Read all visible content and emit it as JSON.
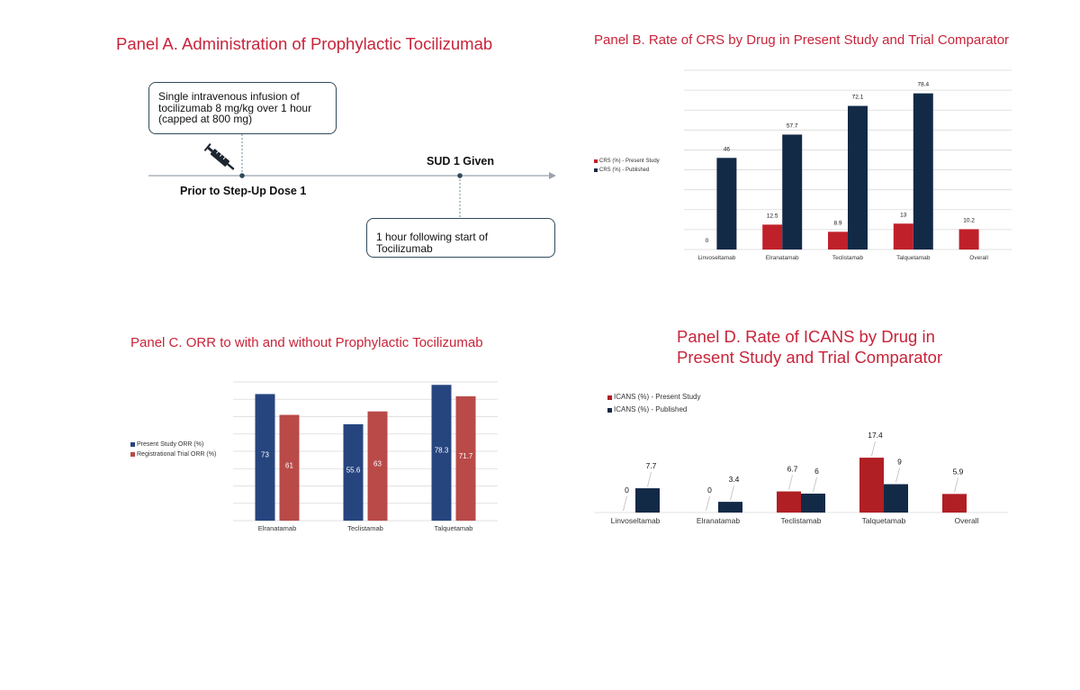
{
  "panel_a": {
    "title": "Panel A. Administration of Prophylactic Tocilizumab",
    "box1_text": "Single intravenous infusion of tocilizumab 8 mg/kg over 1 hour (capped at 800 mg)",
    "prior_label": "Prior to Step-Up Dose 1",
    "sud_label": "SUD 1 Given",
    "box2_text": "1 hour following start of Tocilizumab",
    "icon": "syringe-icon",
    "timeline_color": "#9aa3ad",
    "marker_color": "#2f4a5a"
  },
  "chart_data": [
    {
      "panel": "B",
      "type": "bar",
      "title": "Panel B. Rate of CRS by Drug in Present Study and Trial Comparator",
      "categories": [
        "Linvoseltamab",
        "Elranatamab",
        "Teclistamab",
        "Talquetamab",
        "Overall"
      ],
      "series": [
        {
          "name": "CRS (%) - Present Study",
          "color": "#c0202a",
          "values": [
            0,
            12.5,
            8.9,
            13,
            10.2
          ]
        },
        {
          "name": "CRS (%) - Published",
          "color": "#132a47",
          "values": [
            46,
            57.7,
            72.1,
            78.4,
            null
          ]
        }
      ],
      "ylim": [
        0,
        90
      ],
      "grid": true,
      "legend": "left"
    },
    {
      "panel": "C",
      "type": "bar",
      "title": "Panel C. ORR to with and without Prophylactic Tocilizumab",
      "categories": [
        "Elranatamab",
        "Teclistamab",
        "Talquetamab"
      ],
      "series": [
        {
          "name": "Present Study ORR (%)",
          "color": "#26457f",
          "values": [
            73,
            55.6,
            78.3
          ]
        },
        {
          "name": "Registrational Trial ORR (%)",
          "color": "#b94a48",
          "values": [
            61,
            63,
            71.7
          ]
        }
      ],
      "ylim": [
        0,
        80
      ],
      "grid": true,
      "legend": "left"
    },
    {
      "panel": "D",
      "type": "bar",
      "title": "Panel D. Rate of ICANS by Drug in Present Study and Trial Comparator",
      "categories": [
        "Linvoseltamab",
        "Elranatamab",
        "Teclistamab",
        "Talquetamab",
        "Overall"
      ],
      "series": [
        {
          "name": "ICANS (%) - Present Study",
          "color": "#b01f24",
          "values": [
            0,
            0,
            6.7,
            17.4,
            5.9
          ]
        },
        {
          "name": "ICANS (%) - Published",
          "color": "#132a47",
          "values": [
            7.7,
            3.4,
            6,
            9,
            null
          ]
        }
      ],
      "ylim": [
        0,
        20
      ],
      "grid": false,
      "legend": "top-left"
    }
  ]
}
